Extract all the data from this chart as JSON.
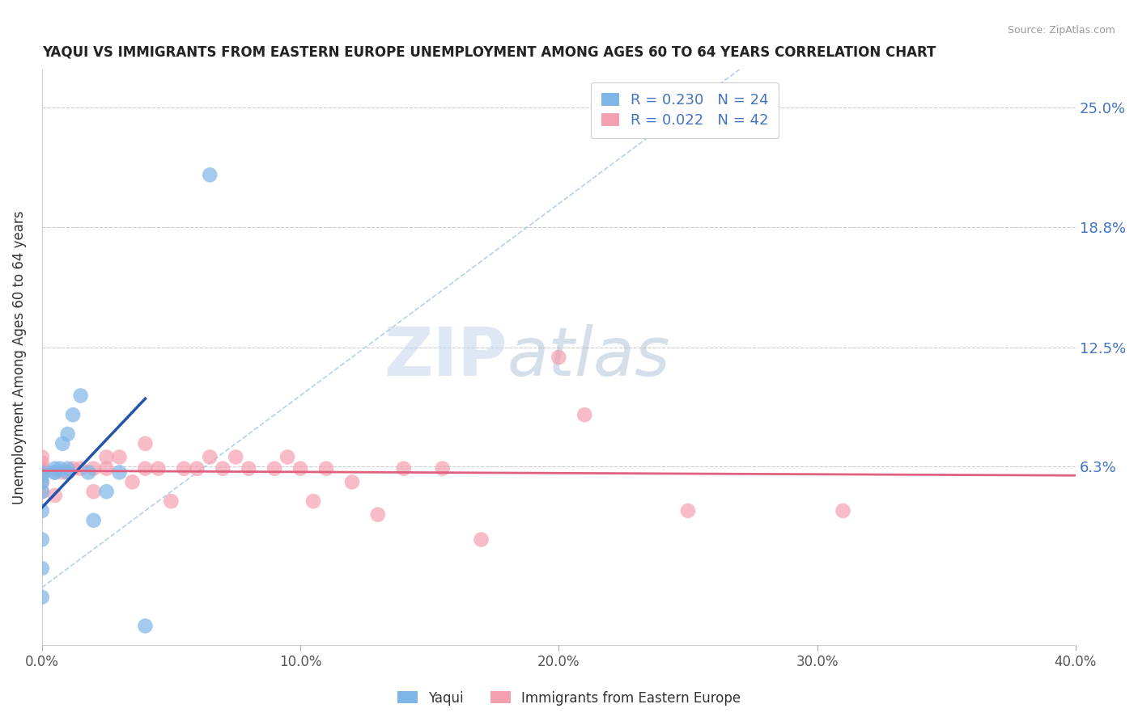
{
  "title": "YAQUI VS IMMIGRANTS FROM EASTERN EUROPE UNEMPLOYMENT AMONG AGES 60 TO 64 YEARS CORRELATION CHART",
  "source": "Source: ZipAtlas.com",
  "ylabel": "Unemployment Among Ages 60 to 64 years",
  "xlabel": "",
  "xmin": 0.0,
  "xmax": 0.4,
  "ymin": -0.03,
  "ymax": 0.27,
  "yticks": [
    0.0,
    0.063,
    0.125,
    0.188,
    0.25
  ],
  "ytick_labels": [
    "",
    "6.3%",
    "12.5%",
    "18.8%",
    "25.0%"
  ],
  "xtick_labels": [
    "0.0%",
    "10.0%",
    "20.0%",
    "30.0%",
    "40.0%"
  ],
  "xticks": [
    0.0,
    0.1,
    0.2,
    0.3,
    0.4
  ],
  "legend_r1": "R = 0.230",
  "legend_n1": "N = 24",
  "legend_r2": "R = 0.022",
  "legend_n2": "N = 42",
  "color_yaqui": "#7EB6E8",
  "color_eastern": "#F4A0B0",
  "color_yaqui_line": "#2255AA",
  "color_eastern_line": "#E06080",
  "color_diag": "#AACCEE",
  "yaqui_x": [
    0.0,
    0.0,
    0.0,
    0.0,
    0.0,
    0.0,
    0.0,
    0.0,
    0.005,
    0.005,
    0.005,
    0.007,
    0.008,
    0.01,
    0.01,
    0.01,
    0.012,
    0.015,
    0.018,
    0.02,
    0.025,
    0.03,
    0.04,
    0.065
  ],
  "yaqui_y": [
    -0.005,
    0.01,
    0.025,
    0.04,
    0.05,
    0.055,
    0.058,
    0.06,
    0.06,
    0.06,
    0.062,
    0.062,
    0.075,
    0.06,
    0.062,
    0.08,
    0.09,
    0.1,
    0.06,
    0.035,
    0.05,
    0.06,
    -0.02,
    0.215
  ],
  "eastern_x": [
    0.0,
    0.0,
    0.0,
    0.0,
    0.0,
    0.0,
    0.0,
    0.005,
    0.008,
    0.01,
    0.012,
    0.015,
    0.02,
    0.02,
    0.025,
    0.025,
    0.03,
    0.035,
    0.04,
    0.04,
    0.045,
    0.05,
    0.055,
    0.06,
    0.065,
    0.07,
    0.075,
    0.08,
    0.09,
    0.095,
    0.1,
    0.105,
    0.11,
    0.12,
    0.13,
    0.14,
    0.155,
    0.17,
    0.2,
    0.21,
    0.25,
    0.31
  ],
  "eastern_y": [
    0.05,
    0.055,
    0.06,
    0.062,
    0.062,
    0.065,
    0.068,
    0.048,
    0.06,
    0.06,
    0.062,
    0.062,
    0.05,
    0.062,
    0.062,
    0.068,
    0.068,
    0.055,
    0.062,
    0.075,
    0.062,
    0.045,
    0.062,
    0.062,
    0.068,
    0.062,
    0.068,
    0.062,
    0.062,
    0.068,
    0.062,
    0.045,
    0.062,
    0.055,
    0.038,
    0.062,
    0.062,
    0.025,
    0.12,
    0.09,
    0.04,
    0.04
  ],
  "watermark_zip": "ZIP",
  "watermark_atlas": "atlas",
  "background_color": "#FFFFFF",
  "grid_color": "#CCCCCC"
}
